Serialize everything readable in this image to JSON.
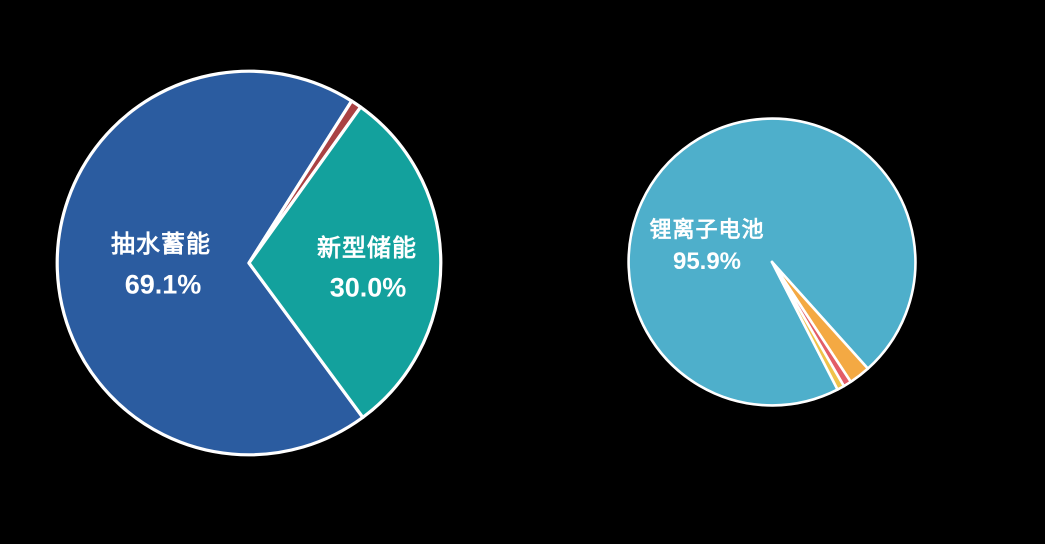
{
  "background_color": "#000000",
  "chart_data": [
    {
      "type": "pie",
      "name": "cumulative-power-storage-mix",
      "direction": "clockwise",
      "start_angle_deg": 143.6,
      "border_color": "#ffffff",
      "border_width_px": 3.2,
      "legend_position": "none",
      "labels_inside": true,
      "slices": [
        {
          "label": "抽水蓄能",
          "value": 69.1,
          "value_label": "69.1%",
          "color": "#2B5CA0",
          "labeled": true
        },
        {
          "label": "",
          "value": 0.9,
          "value_label": "",
          "color": "#AA4243",
          "labeled": false,
          "estimated": true
        },
        {
          "label": "新型储能",
          "value": 30.0,
          "value_label": "30.0%",
          "color": "#13A19D",
          "labeled": true
        }
      ]
    },
    {
      "type": "pie",
      "name": "new-type-storage-technology-mix",
      "direction": "clockwise",
      "start_angle_deg": 152.8,
      "border_color": "#ffffff",
      "border_width_px": 2.6,
      "legend_position": "none",
      "labels_inside": true,
      "slices": [
        {
          "label": "锂离子电池",
          "value": 95.9,
          "value_label": "95.9%",
          "color": "#4EAFCB",
          "labeled": true
        },
        {
          "label": "",
          "value": 2.4,
          "value_label": "",
          "color": "#F4A943",
          "labeled": false,
          "estimated": true
        },
        {
          "label": "",
          "value": 0.9,
          "value_label": "",
          "color": "#E35D67",
          "labeled": false,
          "estimated": true
        },
        {
          "label": "",
          "value": 0.8,
          "value_label": "",
          "color": "#F0C24A",
          "labeled": false,
          "estimated": true
        }
      ]
    }
  ]
}
